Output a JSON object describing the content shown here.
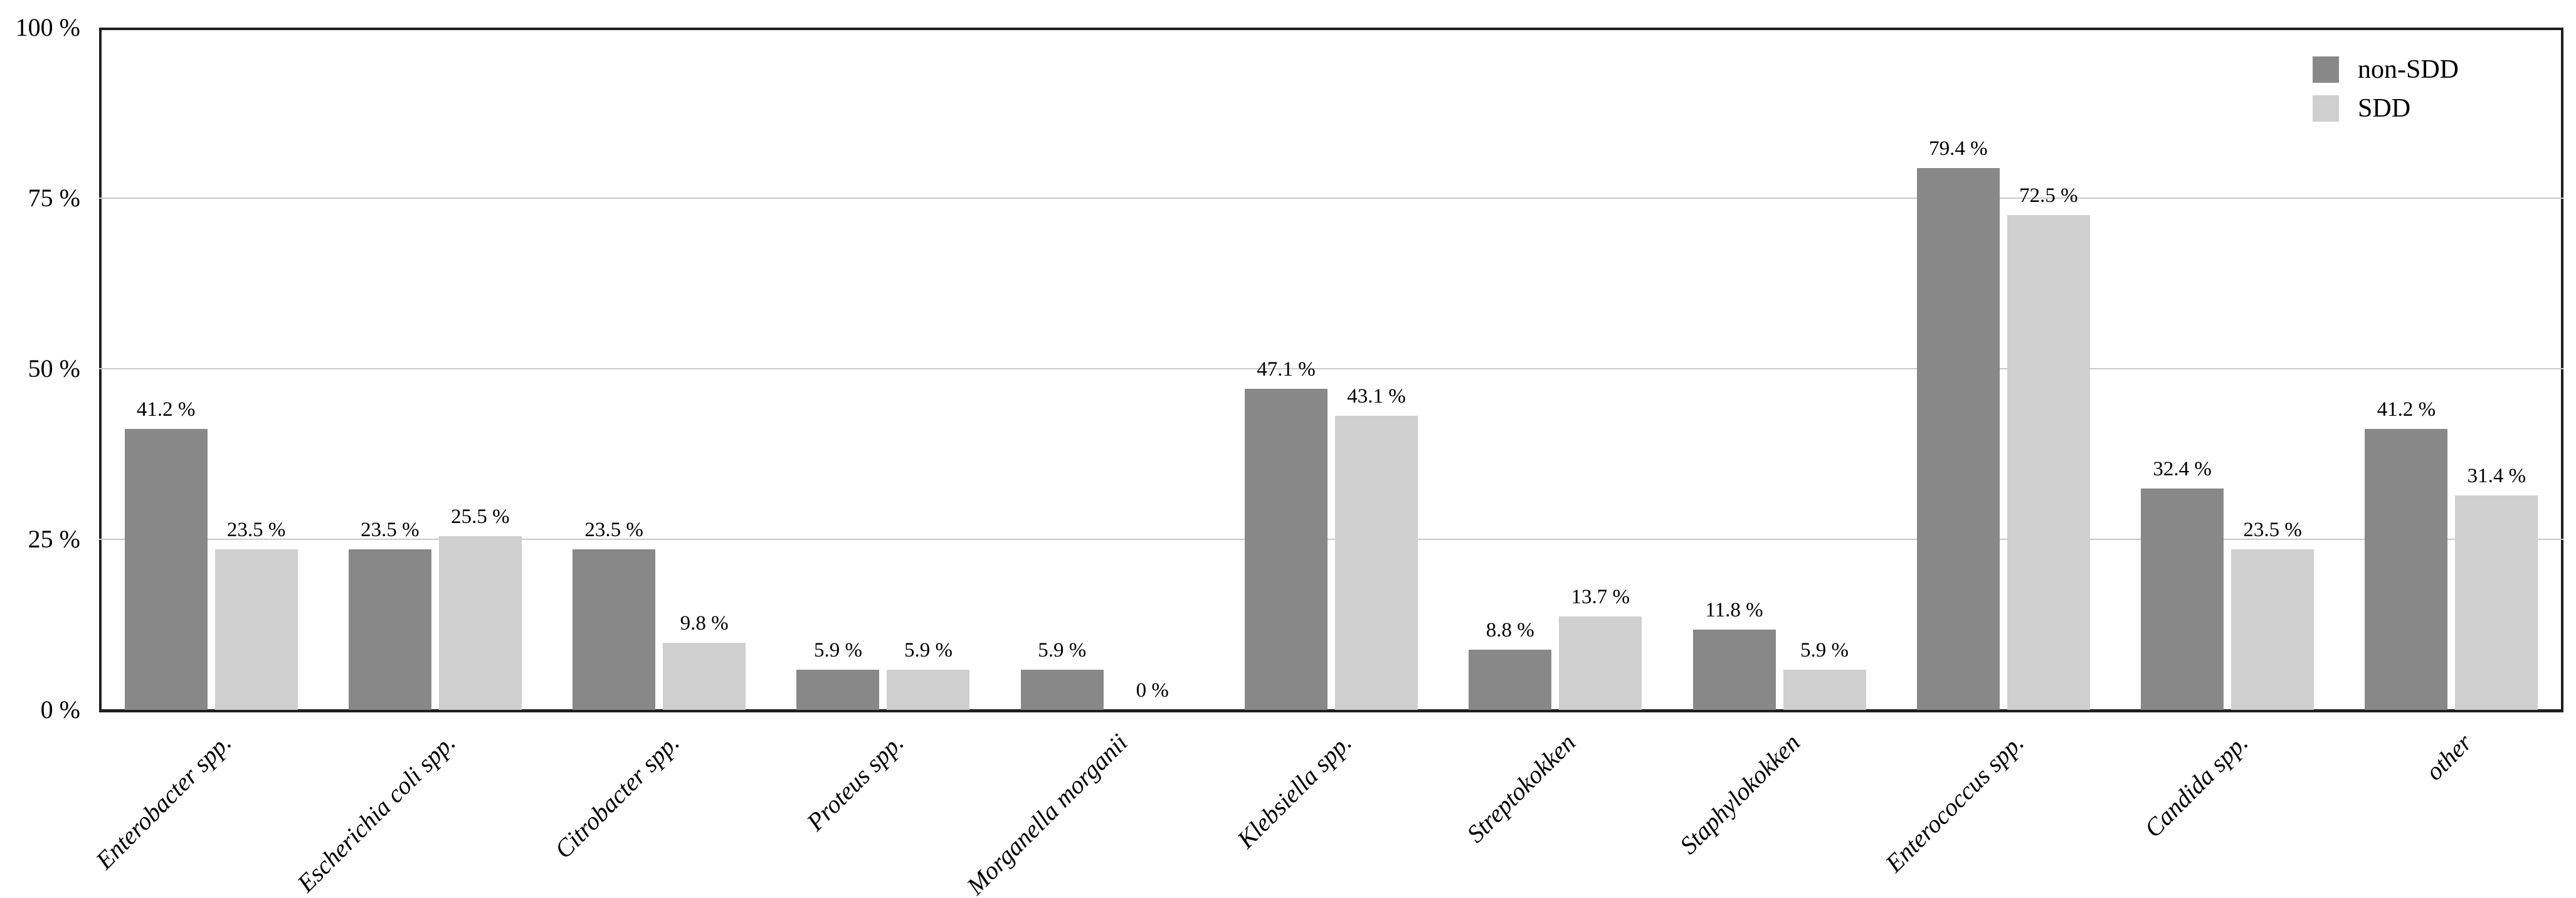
{
  "chart_data": {
    "type": "bar",
    "title": "",
    "xlabel": "",
    "ylabel": "",
    "categories": [
      "Enterobacter spp.",
      "Escherichia coli spp.",
      "Citrobacter spp.",
      "Proteus spp.",
      "Morganella morganii",
      "Klebsiella spp.",
      "Streptokokken",
      "Staphylokokken",
      "Enterococcus spp.",
      "Candida spp.",
      "other"
    ],
    "series": [
      {
        "name": "non-SDD",
        "color": "#888888",
        "values": [
          41.2,
          23.5,
          23.5,
          5.9,
          5.9,
          47.1,
          8.8,
          11.8,
          79.4,
          32.4,
          41.2
        ],
        "value_labels": [
          "41.2 %",
          "23.5 %",
          "23.5 %",
          "5.9 %",
          "5.9 %",
          "47.1 %",
          "8.8 %",
          "11.8 %",
          "79.4 %",
          "32.4 %",
          "41.2 %"
        ]
      },
      {
        "name": "SDD",
        "color": "#cfcfcf",
        "values": [
          23.5,
          25.5,
          9.8,
          5.9,
          0,
          43.1,
          13.7,
          5.9,
          72.5,
          23.5,
          31.4
        ],
        "value_labels": [
          "23.5 %",
          "25.5 %",
          "9.8 %",
          "5.9 %",
          "0 %",
          "43.1 %",
          "13.7 %",
          "5.9 %",
          "72.5 %",
          "23.5 %",
          "31.4 %"
        ]
      }
    ],
    "y_axis": {
      "ylim": [
        0,
        100
      ],
      "ticks": [
        {
          "value": 0,
          "label": "0 %"
        },
        {
          "value": 25,
          "label": "25 %"
        },
        {
          "value": 50,
          "label": "50 %"
        },
        {
          "value": 75,
          "label": "75 %"
        },
        {
          "value": 100,
          "label": "100 %"
        }
      ],
      "gridline_values": [
        25,
        50,
        75
      ],
      "grid": "horizontal"
    },
    "legend": {
      "position": "top-right-inside",
      "items": [
        "non-SDD",
        "SDD"
      ]
    },
    "colors": {
      "non_sdd_bar": "#888888",
      "sdd_bar": "#cfcfcf",
      "gridline": "#c9c9c9",
      "axis": "#1f1f1f",
      "text": "#000000",
      "background": "#ffffff"
    }
  }
}
